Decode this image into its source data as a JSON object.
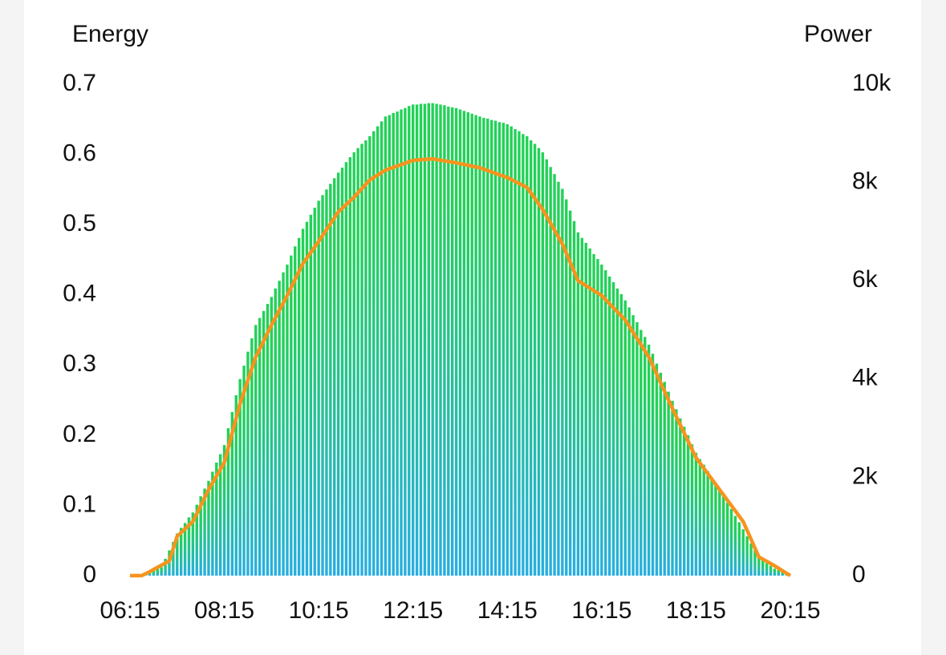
{
  "chart_data": {
    "type": "bar",
    "y_label": "Energy",
    "y2_label": "Power",
    "categories": [
      "06:15",
      null,
      null,
      null,
      null,
      null,
      null,
      null,
      null,
      null,
      null,
      null,
      null,
      null,
      null,
      null,
      null,
      null,
      null,
      null,
      null,
      null,
      null,
      null,
      "08:15",
      null,
      null,
      null,
      null,
      null,
      null,
      null,
      null,
      null,
      null,
      null,
      null,
      null,
      null,
      null,
      null,
      null,
      null,
      null,
      null,
      null,
      null,
      null,
      "10:15",
      null,
      null,
      null,
      null,
      null,
      null,
      null,
      null,
      null,
      null,
      null,
      null,
      null,
      null,
      null,
      null,
      null,
      null,
      null,
      null,
      null,
      null,
      null,
      "12:15",
      null,
      null,
      null,
      null,
      null,
      null,
      null,
      null,
      null,
      null,
      null,
      null,
      null,
      null,
      null,
      null,
      null,
      null,
      null,
      null,
      null,
      null,
      null,
      "14:15",
      null,
      null,
      null,
      null,
      null,
      null,
      null,
      null,
      null,
      null,
      null,
      null,
      null,
      null,
      null,
      null,
      null,
      null,
      null,
      null,
      null,
      null,
      null,
      "16:15",
      null,
      null,
      null,
      null,
      null,
      null,
      null,
      null,
      null,
      null,
      null,
      null,
      null,
      null,
      null,
      null,
      null,
      null,
      null,
      null,
      null,
      null,
      null,
      "18:15",
      null,
      null,
      null,
      null,
      null,
      null,
      null,
      null,
      null,
      null,
      null,
      null,
      null,
      null,
      null,
      null,
      null,
      null,
      null,
      null,
      null,
      null,
      null,
      "20:15"
    ],
    "series": [
      {
        "color": "#22d158",
        "values": [
          0,
          0,
          0,
          0,
          0.002,
          0.005,
          0.007,
          0.01,
          0.012,
          0.024,
          0.036,
          0.048,
          0.06,
          0.068,
          0.075,
          0.083,
          0.09,
          0.101,
          0.113,
          0.124,
          0.135,
          0.148,
          0.161,
          0.173,
          0.186,
          0.21,
          0.233,
          0.257,
          0.28,
          0.299,
          0.319,
          0.338,
          0.357,
          0.367,
          0.377,
          0.387,
          0.397,
          0.409,
          0.42,
          0.432,
          0.443,
          0.456,
          0.469,
          0.481,
          0.494,
          0.504,
          0.514,
          0.524,
          0.534,
          0.542,
          0.55,
          0.558,
          0.566,
          0.574,
          0.581,
          0.589,
          0.596,
          0.603,
          0.609,
          0.615,
          0.62,
          0.626,
          0.633,
          0.64,
          0.647,
          0.654,
          0.656,
          0.659,
          0.661,
          0.664,
          0.666,
          0.669,
          0.671,
          0.671,
          0.672,
          0.672,
          0.673,
          0.673,
          0.672,
          0.671,
          0.67,
          0.668,
          0.667,
          0.666,
          0.664,
          0.662,
          0.66,
          0.658,
          0.656,
          0.654,
          0.652,
          0.651,
          0.649,
          0.648,
          0.646,
          0.645,
          0.643,
          0.64,
          0.636,
          0.633,
          0.629,
          0.626,
          0.62,
          0.615,
          0.609,
          0.603,
          0.593,
          0.582,
          0.572,
          0.561,
          0.551,
          0.536,
          0.52,
          0.505,
          0.489,
          0.481,
          0.474,
          0.466,
          0.458,
          0.451,
          0.443,
          0.435,
          0.426,
          0.418,
          0.409,
          0.401,
          0.392,
          0.382,
          0.371,
          0.361,
          0.35,
          0.34,
          0.329,
          0.316,
          0.302,
          0.289,
          0.276,
          0.262,
          0.249,
          0.237,
          0.224,
          0.212,
          0.2,
          0.187,
          0.175,
          0.166,
          0.158,
          0.149,
          0.14,
          0.132,
          0.123,
          0.114,
          0.104,
          0.095,
          0.085,
          0.076,
          0.066,
          0.056,
          0.046,
          0.036,
          0.026,
          0.022,
          0.018,
          0.014,
          0.01,
          0.008,
          0.005,
          0.003,
          0
        ]
      },
      {
        "type": "line",
        "axis": "y2",
        "color": "#f7931e",
        "values": [
          0,
          0,
          0,
          0,
          40,
          80,
          124,
          168,
          212,
          256,
          300,
          550,
          800,
          875,
          950,
          1025,
          1100,
          1263,
          1425,
          1588,
          1750,
          1888,
          2025,
          2163,
          2300,
          2600,
          2900,
          3200,
          3500,
          3738,
          3975,
          4213,
          4450,
          4613,
          4775,
          4938,
          5100,
          5250,
          5400,
          5550,
          5700,
          5863,
          6025,
          6188,
          6350,
          6463,
          6575,
          6688,
          6800,
          6920,
          7040,
          7160,
          7280,
          7400,
          7475,
          7550,
          7625,
          7700,
          7788,
          7875,
          7963,
          8050,
          8100,
          8150,
          8200,
          8250,
          8279,
          8307,
          8336,
          8364,
          8393,
          8421,
          8450,
          8456,
          8462,
          8468,
          8474,
          8480,
          8467,
          8453,
          8440,
          8427,
          8413,
          8400,
          8383,
          8367,
          8350,
          8333,
          8317,
          8300,
          8271,
          8243,
          8214,
          8186,
          8157,
          8129,
          8100,
          8060,
          8020,
          7980,
          7940,
          7900,
          7788,
          7675,
          7563,
          7450,
          7310,
          7170,
          7030,
          6890,
          6750,
          6563,
          6375,
          6188,
          6000,
          5950,
          5900,
          5850,
          5800,
          5750,
          5700,
          5617,
          5533,
          5450,
          5367,
          5283,
          5200,
          5075,
          4950,
          4825,
          4700,
          4575,
          4450,
          4275,
          4100,
          3925,
          3750,
          3575,
          3400,
          3233,
          3067,
          2900,
          2733,
          2567,
          2400,
          2292,
          2183,
          2075,
          1967,
          1858,
          1750,
          1642,
          1533,
          1425,
          1317,
          1208,
          1100,
          920,
          740,
          560,
          380,
          335,
          290,
          245,
          200,
          150,
          100,
          50,
          0
        ]
      }
    ],
    "ylim": [
      0,
      0.7
    ],
    "yticks": [
      0,
      0.1,
      0.2,
      0.3,
      0.4,
      0.5,
      0.6,
      0.7
    ],
    "y2lim": [
      0,
      10000
    ],
    "y2ticks": [
      0,
      {
        "value": 2000,
        "label": "2k"
      },
      {
        "value": 4000,
        "label": "4k"
      },
      {
        "value": 6000,
        "label": "6k"
      },
      {
        "value": 8000,
        "label": "8k"
      },
      {
        "value": 10000,
        "label": "10k"
      }
    ]
  }
}
